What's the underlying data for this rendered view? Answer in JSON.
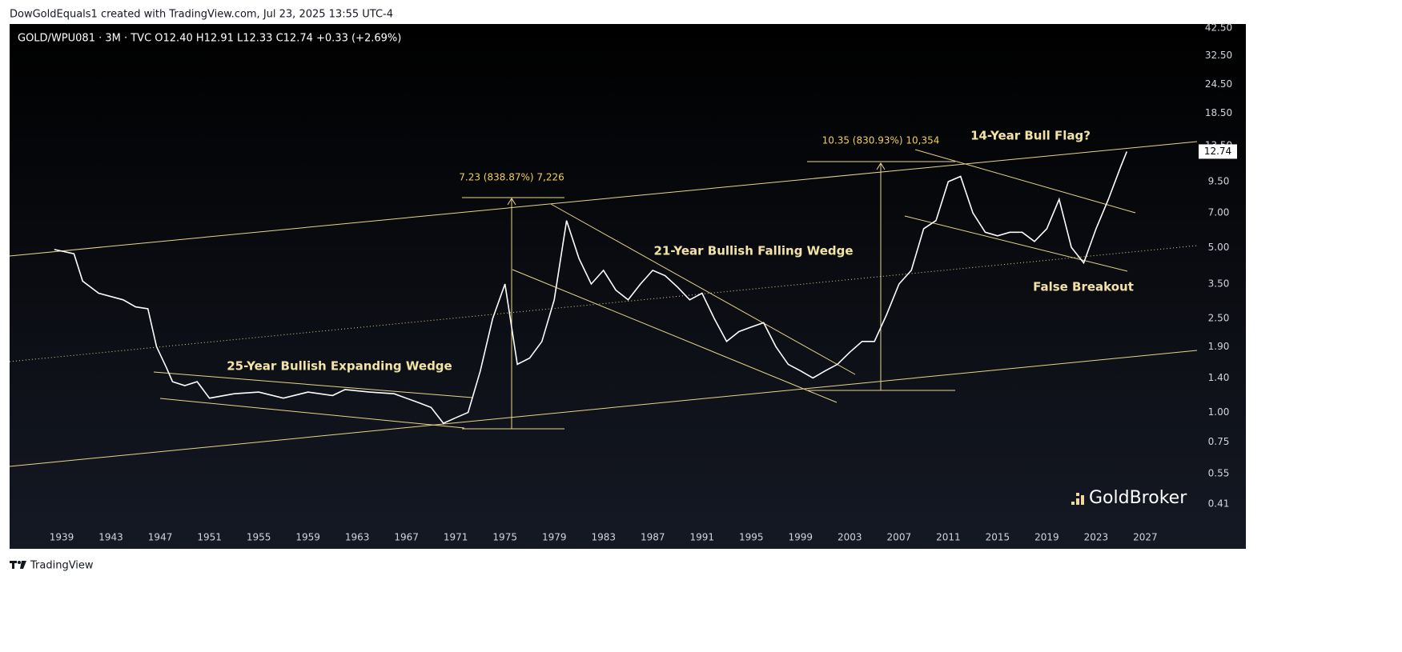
{
  "header": "DowGoldEquals1 created with TradingView.com, Jul 23, 2025 13:55 UTC-4",
  "footer": "TradingView",
  "chart_data": {
    "type": "line",
    "legend_text": "GOLD/WPU081 · 3M · TVC  O12.40  H12.91  L12.33  C12.74  +0.33 (+2.69%)",
    "watermark": "GoldBroker",
    "log_scale": true,
    "grid": false,
    "color": "#ffffff",
    "annotations": [
      "25-Year Bullish Expanding Wedge",
      "21-Year Bullish Falling Wedge",
      "14-Year Bull Flag?",
      "False Breakout",
      "7.23 (838.87%) 7,226",
      "10.35 (830.93%) 10,354"
    ],
    "last_price": 12.74,
    "x": [
      1938.4,
      1940,
      1940.7,
      1942,
      1944,
      1945,
      1946,
      1946.7,
      1947.5,
      1948,
      1949,
      1950,
      1951,
      1953,
      1955,
      1957,
      1959,
      1961,
      1962,
      1964,
      1966,
      1968,
      1969,
      1970,
      1971,
      1972,
      1973,
      1974,
      1975,
      1976,
      1977,
      1978,
      1979,
      1980,
      1981,
      1982,
      1983,
      1984,
      1985,
      1986,
      1987,
      1988,
      1989,
      1990,
      1991,
      1992,
      1993,
      1994,
      1995,
      1996,
      1997,
      1998,
      1999,
      2000,
      2001,
      2002,
      2003,
      2004,
      2005,
      2006,
      2007,
      2008,
      2009,
      2010,
      2011,
      2012,
      2013,
      2014,
      2015,
      2016,
      2017,
      2018,
      2019,
      2020,
      2021,
      2022,
      2023,
      2024,
      2025,
      2025.5
    ],
    "values": [
      4.9,
      4.7,
      3.6,
      3.2,
      3.0,
      2.8,
      2.75,
      1.9,
      1.55,
      1.35,
      1.3,
      1.35,
      1.15,
      1.2,
      1.22,
      1.15,
      1.22,
      1.18,
      1.25,
      1.22,
      1.2,
      1.1,
      1.05,
      0.9,
      0.95,
      1.0,
      1.5,
      2.5,
      3.5,
      1.6,
      1.7,
      2.0,
      3.0,
      6.5,
      4.5,
      3.5,
      4.0,
      3.3,
      3.0,
      3.5,
      4.0,
      3.8,
      3.4,
      3.0,
      3.2,
      2.5,
      2.0,
      2.2,
      2.3,
      2.4,
      1.9,
      1.6,
      1.5,
      1.4,
      1.5,
      1.6,
      1.8,
      2.0,
      2.0,
      2.6,
      3.5,
      4.0,
      6.0,
      6.5,
      9.5,
      10.0,
      7.0,
      5.8,
      5.6,
      5.8,
      5.8,
      5.3,
      6.0,
      8.0,
      5.0,
      4.3,
      6.0,
      8.0,
      11.0,
      12.74
    ],
    "xlim": [
      1934.77,
      2031.2
    ],
    "xticks": [
      1939,
      1943,
      1947,
      1951,
      1955,
      1959,
      1963,
      1967,
      1971,
      1975,
      1979,
      1983,
      1987,
      1991,
      1995,
      1999,
      2003,
      2007,
      2011,
      2015,
      2019,
      2023,
      2027
    ],
    "ylim": [
      0.337,
      44.2
    ],
    "yticks": [
      {
        "value": 42.5,
        "label": "42.50"
      },
      {
        "value": 32.5,
        "label": "32.50"
      },
      {
        "value": 24.5,
        "label": "24.50"
      },
      {
        "value": 18.5,
        "label": "18.50"
      },
      {
        "value": 13.5,
        "label": "13.50"
      },
      {
        "value": 9.5,
        "label": "9.50"
      },
      {
        "value": 7,
        "label": "7.00"
      },
      {
        "value": 5,
        "label": "5.00"
      },
      {
        "value": 3.5,
        "label": "3.50"
      },
      {
        "value": 2.5,
        "label": "2.50"
      },
      {
        "value": 1.9,
        "label": "1.90"
      },
      {
        "value": 1.4,
        "label": "1.40"
      },
      {
        "value": 1,
        "label": "1.00"
      },
      {
        "value": 0.75,
        "label": "0.75"
      },
      {
        "value": 0.55,
        "label": "0.55"
      },
      {
        "value": 0.41,
        "label": "0.41"
      }
    ]
  }
}
